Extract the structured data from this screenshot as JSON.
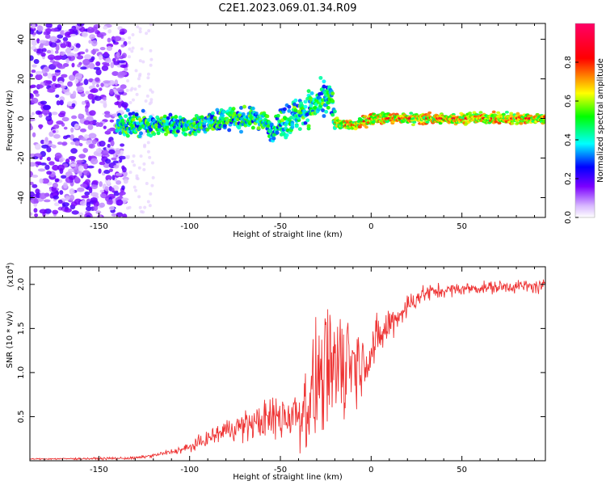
{
  "chart_data": [
    {
      "type": "heatmap",
      "title": "C2E1.2023.069.01.34.R09",
      "xlabel": "Height of straight line (km)",
      "ylabel": "Frequency (Hz)",
      "xlim": [
        -188,
        96
      ],
      "ylim": [
        -50,
        48
      ],
      "xticks": [
        -150,
        -100,
        -50,
        0,
        50
      ],
      "yticks": [
        -40,
        -20,
        0,
        20,
        40
      ],
      "colorbar": {
        "label": "Normalized spectral amplitude",
        "range": [
          0,
          1
        ],
        "ticks": [
          0.0,
          0.2,
          0.4,
          0.6,
          0.8
        ],
        "colors": [
          "#ffffff",
          "#d8b8ff",
          "#7b00ff",
          "#0000ff",
          "#00ffff",
          "#00ff00",
          "#ffff00",
          "#ff0000",
          "#ff0066"
        ]
      },
      "features": [
        {
          "name": "noise",
          "x_range": [
            -188,
            -135
          ],
          "freq_range": [
            -50,
            48
          ],
          "amplitude": [
            0.05,
            0.3
          ]
        },
        {
          "name": "sparse-noise",
          "x_range": [
            -135,
            -120
          ],
          "freq_range": [
            -50,
            48
          ],
          "amplitude": [
            0.02,
            0.1
          ]
        },
        {
          "name": "signal-band",
          "points": [
            [
              -140,
              -3
            ],
            [
              -120,
              -3
            ],
            [
              -100,
              -4
            ],
            [
              -80,
              0
            ],
            [
              -60,
              0
            ],
            [
              -55,
              -6
            ],
            [
              -45,
              0
            ],
            [
              -35,
              5
            ],
            [
              -22,
              10
            ],
            [
              -20,
              -2
            ],
            [
              -10,
              -4
            ],
            [
              0,
              0
            ],
            [
              20,
              0
            ],
            [
              50,
              0
            ],
            [
              96,
              0
            ]
          ],
          "amplitude": [
            0.3,
            0.9
          ]
        }
      ]
    },
    {
      "type": "line",
      "xlabel": "Height of straight line (km)",
      "ylabel": "SNR (10 * v/v)",
      "scale_label": "(x10",
      "scale_exp": "4",
      "xlim": [
        -188,
        96
      ],
      "ylim": [
        0,
        22000
      ],
      "xticks": [
        -150,
        -100,
        -50,
        0,
        50
      ],
      "yticks": [
        5000,
        10000,
        15000,
        20000
      ],
      "ytick_labels": [
        "0.5",
        "1.0",
        "1.5",
        "2.0"
      ],
      "color": "#ee3333",
      "envelope": [
        [
          -188,
          200
        ],
        [
          -150,
          250
        ],
        [
          -130,
          300
        ],
        [
          -120,
          600
        ],
        [
          -110,
          1000
        ],
        [
          -100,
          1500
        ],
        [
          -90,
          2500
        ],
        [
          -80,
          3500
        ],
        [
          -70,
          4000
        ],
        [
          -60,
          4500
        ],
        [
          -50,
          5000
        ],
        [
          -40,
          5500
        ],
        [
          -35,
          6500
        ],
        [
          -30,
          8000
        ],
        [
          -25,
          9500
        ],
        [
          -20,
          11000
        ],
        [
          -15,
          12000
        ],
        [
          -10,
          11500
        ],
        [
          -5,
          11000
        ],
        [
          0,
          12500
        ],
        [
          5,
          14000
        ],
        [
          10,
          15500
        ],
        [
          15,
          16500
        ],
        [
          20,
          17500
        ],
        [
          25,
          18500
        ],
        [
          30,
          19000
        ],
        [
          40,
          19300
        ],
        [
          50,
          19500
        ],
        [
          60,
          19600
        ],
        [
          80,
          19800
        ],
        [
          96,
          19700
        ]
      ],
      "noise": [
        [
          -188,
          80
        ],
        [
          -120,
          200
        ],
        [
          -100,
          600
        ],
        [
          -80,
          1500
        ],
        [
          -60,
          2500
        ],
        [
          -45,
          4000
        ],
        [
          -35,
          6000
        ],
        [
          -25,
          9000
        ],
        [
          -20,
          11000
        ],
        [
          -15,
          8000
        ],
        [
          -5,
          4000
        ],
        [
          5,
          3000
        ],
        [
          15,
          2000
        ],
        [
          25,
          1500
        ],
        [
          40,
          900
        ],
        [
          60,
          800
        ],
        [
          96,
          1000
        ]
      ]
    }
  ]
}
